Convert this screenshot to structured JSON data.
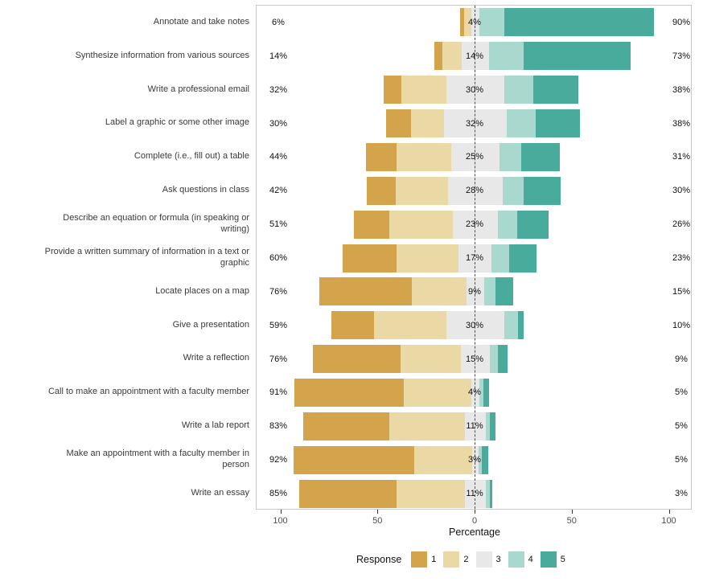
{
  "chart_data": {
    "type": "bar",
    "subtype": "diverging_stacked_likert",
    "xlabel": "Percentage",
    "legend_title": "Response",
    "legend_position": "bottom",
    "legend_labels": [
      "1",
      "2",
      "3",
      "4",
      "5"
    ],
    "colors": [
      "#D3A44C",
      "#EAD8A5",
      "#E8E8E8",
      "#A9D8CF",
      "#49AB9C"
    ],
    "axis_range": [
      -112,
      112
    ],
    "grid": false,
    "x_ticks": [
      {
        "label": "100",
        "value": -100
      },
      {
        "label": "50",
        "value": -50
      },
      {
        "label": "0",
        "value": 0
      },
      {
        "label": "50",
        "value": 50
      },
      {
        "label": "100",
        "value": 100
      }
    ],
    "rows": [
      {
        "label": "Annotate and take notes",
        "low": "6%",
        "mid": "4%",
        "high": "90%",
        "segments": [
          2,
          4,
          4,
          13,
          77
        ]
      },
      {
        "label": "Synthesize information from various sources",
        "low": "14%",
        "mid": "14%",
        "high": "73%",
        "segments": [
          4,
          10,
          14,
          18,
          55
        ]
      },
      {
        "label": "Write a professional email",
        "low": "32%",
        "mid": "30%",
        "high": "38%",
        "segments": [
          9,
          23,
          30,
          15,
          23
        ]
      },
      {
        "label": "Label a graphic or some other image",
        "low": "30%",
        "mid": "32%",
        "high": "38%",
        "segments": [
          13,
          17,
          32,
          15,
          23
        ]
      },
      {
        "label": "Complete (i.e., fill out) a table",
        "low": "44%",
        "mid": "25%",
        "high": "31%",
        "segments": [
          16,
          28,
          25,
          11,
          20
        ]
      },
      {
        "label": "Ask questions in class",
        "low": "42%",
        "mid": "28%",
        "high": "30%",
        "segments": [
          15,
          27,
          28,
          11,
          19
        ]
      },
      {
        "label": "Describe an equation or formula (in speaking or writing)",
        "low": "51%",
        "mid": "23%",
        "high": "26%",
        "segments": [
          18,
          33,
          23,
          10,
          16
        ]
      },
      {
        "label": "Provide a written summary of information in a text or graphic",
        "low": "60%",
        "mid": "17%",
        "high": "23%",
        "segments": [
          28,
          32,
          17,
          9,
          14
        ]
      },
      {
        "label": "Locate places on a map",
        "low": "76%",
        "mid": "9%",
        "high": "15%",
        "segments": [
          48,
          28,
          9,
          6,
          9
        ]
      },
      {
        "label": "Give a presentation",
        "low": "59%",
        "mid": "30%",
        "high": "10%",
        "segments": [
          22,
          37,
          30,
          7,
          3
        ]
      },
      {
        "label": "Write a reflection",
        "low": "76%",
        "mid": "15%",
        "high": "9%",
        "segments": [
          45,
          31,
          15,
          4,
          5
        ]
      },
      {
        "label": "Call to make an appointment with a faculty member",
        "low": "91%",
        "mid": "4%",
        "high": "5%",
        "segments": [
          56,
          35,
          4,
          2,
          3
        ]
      },
      {
        "label": "Write a lab report",
        "low": "83%",
        "mid": "11%",
        "high": "5%",
        "segments": [
          44,
          39,
          11,
          2,
          3
        ]
      },
      {
        "label": "Make an appointment with a faculty member in person",
        "low": "92%",
        "mid": "3%",
        "high": "5%",
        "segments": [
          62,
          30,
          3,
          2,
          3
        ]
      },
      {
        "label": "Write an essay",
        "low": "85%",
        "mid": "11%",
        "high": "3%",
        "segments": [
          50,
          35,
          11,
          2,
          1
        ]
      }
    ]
  }
}
